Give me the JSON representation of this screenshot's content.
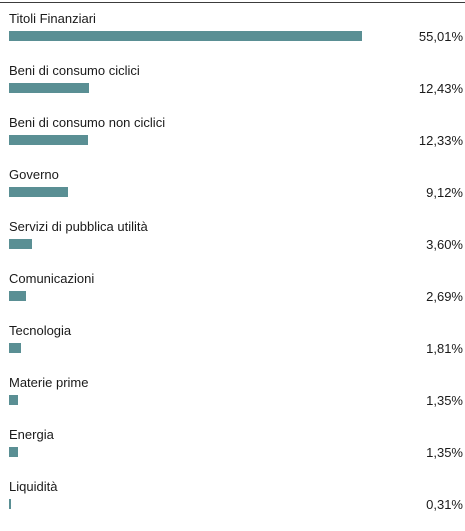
{
  "chart_data": {
    "type": "bar",
    "orientation": "horizontal",
    "title": "",
    "xlabel": "",
    "ylabel": "",
    "categories": [
      "Titoli Finanziari",
      "Beni di consumo ciclici",
      "Beni di consumo non ciclici",
      "Governo",
      "Servizi di pubblica utilità",
      "Comunicazioni",
      "Tecnologia",
      "Materie prime",
      "Energia",
      "Liquidità"
    ],
    "values": [
      55.01,
      12.43,
      12.33,
      9.12,
      3.6,
      2.69,
      1.81,
      1.35,
      1.35,
      0.31
    ],
    "value_labels": [
      "55,01%",
      "12,43%",
      "12,33%",
      "9,12%",
      "3,60%",
      "2,69%",
      "1,81%",
      "1,35%",
      "1,35%",
      "0,31%"
    ],
    "xlim": [
      0,
      78
    ],
    "grid": false,
    "bar_color": "#5a8f94"
  }
}
